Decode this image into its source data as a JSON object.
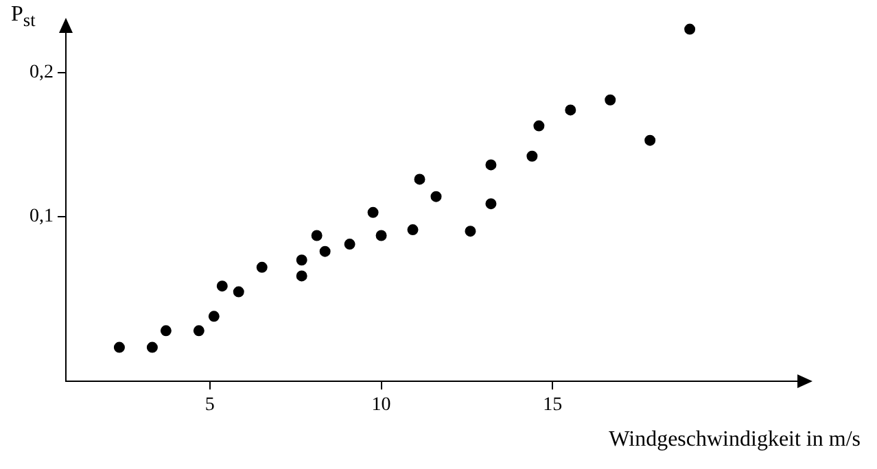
{
  "chart_data": {
    "type": "scatter",
    "ylabel": "P$_{st}$",
    "xlabel": "Windgeschwindigkeit in m/s",
    "x": [
      2.36,
      3.32,
      3.72,
      4.68,
      5.12,
      5.36,
      5.84,
      6.52,
      7.68,
      7.68,
      8.12,
      8.36,
      9.08,
      9.76,
      10.0,
      10.92,
      11.12,
      11.6,
      12.6,
      13.2,
      13.2,
      14.4,
      14.6,
      15.52,
      16.68,
      17.84,
      19.0
    ],
    "series": [
      {
        "color": "#000000",
        "values": [
          0.0095,
          0.0095,
          0.021,
          0.021,
          0.031,
          0.052,
          0.048,
          0.065,
          0.07,
          0.059,
          0.087,
          0.076,
          0.081,
          0.103,
          0.087,
          0.091,
          0.126,
          0.114,
          0.09,
          0.109,
          0.136,
          0.142,
          0.163,
          0.174,
          0.181,
          0.153,
          0.23
        ]
      }
    ],
    "xlim": [
      0.8,
      22.5
    ],
    "ylim": [
      -0.014,
      0.236
    ],
    "xticks": [
      5,
      10,
      15
    ],
    "yticks": [
      {
        "value": 0.1,
        "label": "0,1"
      },
      {
        "value": 0.2,
        "label": "0,2"
      }
    ],
    "marker": "circle",
    "grid": false,
    "legend": false
  }
}
